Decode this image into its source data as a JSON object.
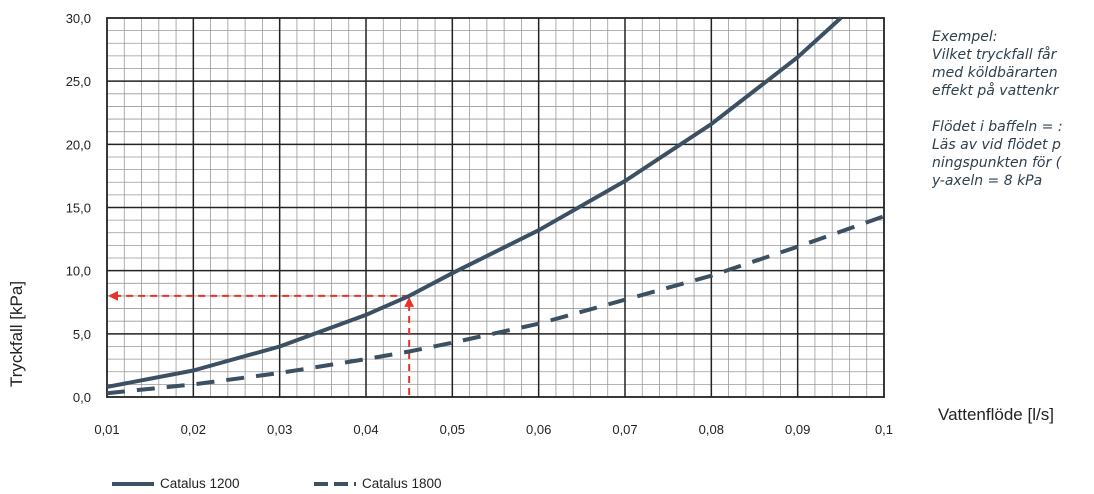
{
  "chart_data": {
    "type": "line",
    "xlabel": "Vattenflöde [l/s]",
    "ylabel": "Tryckfall [kPa]",
    "xlim": [
      0.01,
      0.1
    ],
    "ylim": [
      0,
      30
    ],
    "x_ticks": [
      "0,01",
      "0,02",
      "0,03",
      "0,04",
      "0,05",
      "0,06",
      "0,07",
      "0,08",
      "0,09",
      "0,1"
    ],
    "y_ticks": [
      "0,0",
      "5,0",
      "10,0",
      "15,0",
      "20,0",
      "25,0",
      "30,0"
    ],
    "grid": true,
    "legend_position": "bottom-left",
    "series": [
      {
        "name": "Catalus 1200",
        "style": "solid",
        "color": "#3b5062",
        "x": [
          0.01,
          0.02,
          0.03,
          0.04,
          0.045,
          0.05,
          0.06,
          0.07,
          0.08,
          0.09,
          0.095
        ],
        "y": [
          0.8,
          2.1,
          4.0,
          6.5,
          8.0,
          9.8,
          13.2,
          17.1,
          21.6,
          26.9,
          30.0
        ]
      },
      {
        "name": "Catalus 1800",
        "style": "dashed",
        "color": "#3b5062",
        "x": [
          0.01,
          0.02,
          0.03,
          0.04,
          0.045,
          0.05,
          0.06,
          0.07,
          0.08,
          0.09,
          0.1
        ],
        "y": [
          0.3,
          1.0,
          1.9,
          3.0,
          3.6,
          4.3,
          5.8,
          7.7,
          9.6,
          11.9,
          14.3
        ]
      }
    ],
    "annotation": {
      "color": "#e8332a",
      "x": 0.045,
      "y": 8.0
    }
  },
  "note": {
    "lines": [
      "Exempel:",
      "Vilket tryckfall får",
      "med köldbärarten",
      "effekt på vattenkr",
      "",
      "Flödet i baffeln = :",
      "Läs av vid flödet p",
      "ningspunkten för (",
      "y-axeln = 8 kPa"
    ]
  }
}
